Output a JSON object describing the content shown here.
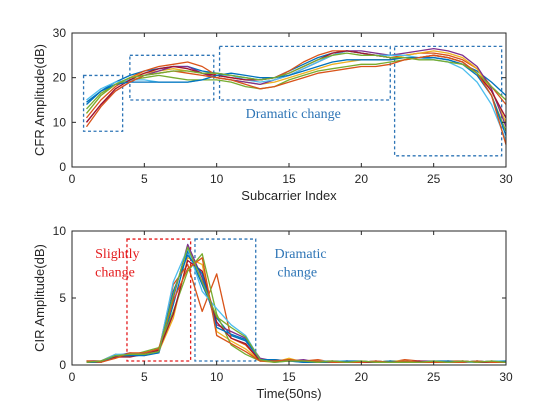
{
  "chart_data": [
    {
      "type": "line",
      "xlabel": "Subcarrier Index",
      "ylabel": "CFR Amplitude(dB)",
      "xlim": [
        0,
        30
      ],
      "ylim": [
        0,
        30
      ],
      "xticks": [
        0,
        5,
        10,
        15,
        20,
        25,
        30
      ],
      "yticks": [
        0,
        10,
        20,
        30
      ],
      "grid": false,
      "series_colors": [
        "#0072BD",
        "#D95319",
        "#EDB120",
        "#7E2F8E",
        "#77AC30",
        "#4DBEEE",
        "#A2142F",
        "#0072BD",
        "#D95319",
        "#77AC30"
      ],
      "x": [
        1,
        2,
        3,
        4,
        5,
        6,
        7,
        8,
        9,
        10,
        11,
        12,
        13,
        14,
        15,
        16,
        17,
        18,
        19,
        20,
        21,
        22,
        23,
        24,
        25,
        26,
        27,
        28,
        29,
        30
      ],
      "series": [
        {
          "values": [
            14,
            17,
            19,
            20.5,
            21.5,
            22,
            22.5,
            22.5,
            21.5,
            21,
            20.5,
            20,
            19.5,
            20,
            21.5,
            23,
            24.5,
            25.5,
            26,
            25.5,
            25,
            24.5,
            24.5,
            24.5,
            24.5,
            24,
            23,
            21.5,
            19,
            16
          ]
        },
        {
          "values": [
            11,
            15,
            18,
            20,
            21.5,
            22.5,
            23,
            23.5,
            22.5,
            20.5,
            20,
            19.5,
            19.5,
            20,
            21.5,
            23.5,
            25,
            26,
            26,
            25.5,
            25,
            24.5,
            25,
            25.5,
            25.5,
            25,
            24,
            22,
            18,
            14
          ]
        },
        {
          "values": [
            12,
            16,
            18.5,
            20,
            21,
            21.5,
            22,
            21.5,
            21,
            20,
            19.5,
            19,
            18.5,
            19,
            20,
            21,
            22,
            23,
            23.5,
            24,
            24,
            24,
            25,
            25.5,
            26,
            25.5,
            24.5,
            22,
            17,
            10
          ]
        },
        {
          "values": [
            10,
            14,
            17,
            19,
            20.5,
            21.5,
            22.5,
            22.5,
            21,
            20,
            19.5,
            19,
            18.5,
            19.5,
            20.5,
            22,
            23.5,
            25,
            26,
            26,
            25.5,
            25,
            25.5,
            26,
            26.5,
            26,
            25,
            22.5,
            17.5,
            9
          ]
        },
        {
          "values": [
            13,
            16.5,
            18.5,
            19.5,
            20,
            20.5,
            20,
            19.5,
            19.5,
            19.5,
            19,
            18,
            17.5,
            18,
            19.5,
            20.5,
            21.5,
            22,
            22.5,
            23,
            23,
            23.5,
            24,
            24.5,
            25,
            24.5,
            23.5,
            21,
            16,
            8
          ]
        },
        {
          "values": [
            15,
            17.5,
            19,
            19.5,
            19.5,
            19,
            19,
            19,
            19.5,
            20.5,
            20.5,
            19.5,
            19,
            19.5,
            20.5,
            22,
            23.5,
            25,
            26,
            25.5,
            25,
            25,
            25,
            24.5,
            24,
            23.5,
            22,
            19,
            14,
            6
          ]
        },
        {
          "values": [
            10,
            14,
            17.5,
            19.5,
            21,
            22,
            22.5,
            22,
            21,
            20.5,
            20,
            19.5,
            19.5,
            20,
            21,
            22.5,
            24,
            25.5,
            26,
            25.5,
            25,
            24.5,
            24.5,
            24.5,
            25,
            24.5,
            23.5,
            21,
            17,
            11
          ]
        },
        {
          "values": [
            14.5,
            17,
            18.5,
            19,
            19,
            19,
            19,
            19,
            19.5,
            20.5,
            21,
            20.5,
            20,
            20,
            20.5,
            21.5,
            22.5,
            23.5,
            24,
            24,
            24,
            24,
            24.5,
            24.5,
            24.5,
            24,
            23,
            20.5,
            16,
            7
          ]
        },
        {
          "values": [
            9,
            13.5,
            17,
            19,
            20.5,
            21,
            21.5,
            21,
            20.5,
            20,
            19.5,
            18.5,
            17.5,
            18,
            19,
            20,
            21,
            21.5,
            22,
            22.5,
            22.5,
            23,
            24,
            24.5,
            25,
            24.5,
            23.5,
            21,
            16,
            5
          ]
        },
        {
          "values": [
            12,
            16,
            18.5,
            20,
            20.5,
            21,
            21.5,
            21.5,
            21,
            21,
            20.5,
            20,
            19.5,
            20,
            21,
            22.5,
            24,
            25,
            25.5,
            25,
            25,
            24.5,
            24.5,
            24,
            24,
            23.5,
            23,
            21,
            18,
            15
          ]
        }
      ],
      "annotations": [
        {
          "text": "Dramatic change",
          "x": 12,
          "y": 11,
          "color": "#2e75b6"
        }
      ],
      "boxes": [
        {
          "x0": 0.8,
          "x1": 3.5,
          "y0": 8,
          "y1": 20.5,
          "color": "#2e75b6"
        },
        {
          "x0": 4,
          "x1": 9.8,
          "y0": 15,
          "y1": 25,
          "color": "#2e75b6"
        },
        {
          "x0": 10.2,
          "x1": 22,
          "y0": 15,
          "y1": 27,
          "color": "#2e75b6"
        },
        {
          "x0": 22.3,
          "x1": 29.7,
          "y0": 2.5,
          "y1": 27,
          "color": "#2e75b6"
        }
      ]
    },
    {
      "type": "line",
      "xlabel": "Time(50ns)",
      "ylabel": "CIR Amplitude(dB)",
      "xlim": [
        0,
        30
      ],
      "ylim": [
        0,
        10
      ],
      "xticks": [
        0,
        5,
        10,
        15,
        20,
        25,
        30
      ],
      "yticks": [
        0,
        5,
        10
      ],
      "grid": false,
      "series_colors": [
        "#0072BD",
        "#D95319",
        "#EDB120",
        "#7E2F8E",
        "#77AC30",
        "#4DBEEE",
        "#A2142F",
        "#0072BD",
        "#D95319",
        "#77AC30"
      ],
      "x": [
        1,
        2,
        3,
        4,
        5,
        6,
        7,
        8,
        9,
        10,
        11,
        12,
        13,
        14,
        15,
        16,
        17,
        18,
        19,
        20,
        21,
        22,
        23,
        24,
        25,
        26,
        27,
        28,
        29,
        30
      ],
      "series": [
        {
          "values": [
            0.3,
            0.2,
            0.6,
            0.7,
            0.8,
            0.9,
            4.5,
            8.5,
            6,
            3.5,
            2.2,
            1.8,
            0.4,
            0.3,
            0.4,
            0.3,
            0.2,
            0.3,
            0.2,
            0.2,
            0.2,
            0.3,
            0.2,
            0.2,
            0.3,
            0.2,
            0.2,
            0.3,
            0.2,
            0.2
          ]
        },
        {
          "values": [
            0.2,
            0.3,
            0.8,
            0.6,
            0.9,
            1.1,
            6,
            7.5,
            4,
            6.8,
            2,
            1.5,
            0.3,
            0.4,
            0.3,
            0.3,
            0.4,
            0.2,
            0.3,
            0.2,
            0.3,
            0.2,
            0.4,
            0.3,
            0.2,
            0.3,
            0.3,
            0.2,
            0.3,
            0.2
          ]
        },
        {
          "values": [
            0.3,
            0.3,
            0.5,
            0.8,
            0.7,
            1,
            3.5,
            8,
            7.5,
            2.5,
            1.8,
            1.2,
            0.3,
            0.2,
            0.5,
            0.2,
            0.3,
            0.3,
            0.2,
            0.3,
            0.2,
            0.3,
            0.3,
            0.2,
            0.2,
            0.3,
            0.2,
            0.2,
            0.2,
            0.3
          ]
        },
        {
          "values": [
            0.2,
            0.2,
            0.7,
            0.9,
            0.8,
            1.2,
            5,
            9,
            6.5,
            3,
            2.5,
            2,
            0.5,
            0.3,
            0.3,
            0.4,
            0.2,
            0.2,
            0.3,
            0.2,
            0.3,
            0.2,
            0.2,
            0.3,
            0.3,
            0.2,
            0.3,
            0.2,
            0.3,
            0.2
          ]
        },
        {
          "values": [
            0.3,
            0.2,
            0.6,
            0.7,
            1,
            1.3,
            4,
            7,
            8.3,
            3.8,
            1.5,
            0.8,
            0.3,
            0.3,
            0.4,
            0.3,
            0.3,
            0.2,
            0.2,
            0.3,
            0.2,
            0.3,
            0.2,
            0.2,
            0.2,
            0.3,
            0.2,
            0.3,
            0.2,
            0.2
          ]
        },
        {
          "values": [
            0.2,
            0.3,
            0.8,
            0.8,
            0.9,
            1,
            6.2,
            8.7,
            5.5,
            4.2,
            3,
            2.2,
            0.4,
            0.2,
            0.3,
            0.2,
            0.3,
            0.3,
            0.3,
            0.2,
            0.3,
            0.2,
            0.3,
            0.2,
            0.3,
            0.2,
            0.2,
            0.2,
            0.3,
            0.3
          ]
        },
        {
          "values": [
            0.3,
            0.3,
            0.6,
            0.6,
            0.8,
            1.1,
            3.8,
            7.8,
            7,
            3.2,
            2,
            1.6,
            0.3,
            0.3,
            0.3,
            0.3,
            0.2,
            0.3,
            0.2,
            0.2,
            0.2,
            0.2,
            0.2,
            0.3,
            0.2,
            0.2,
            0.3,
            0.2,
            0.2,
            0.2
          ]
        },
        {
          "values": [
            0.2,
            0.2,
            0.7,
            0.7,
            0.7,
            0.9,
            5.5,
            8.2,
            6.8,
            2.8,
            2.3,
            1.9,
            0.4,
            0.4,
            0.3,
            0.2,
            0.2,
            0.2,
            0.3,
            0.3,
            0.2,
            0.3,
            0.2,
            0.2,
            0.3,
            0.3,
            0.2,
            0.3,
            0.2,
            0.3
          ]
        },
        {
          "values": [
            0.3,
            0.2,
            0.5,
            0.9,
            0.9,
            1.2,
            4.8,
            7.2,
            8,
            2.2,
            1.6,
            1,
            0.3,
            0.3,
            0.4,
            0.3,
            0.3,
            0.2,
            0.2,
            0.2,
            0.3,
            0.2,
            0.3,
            0.2,
            0.2,
            0.2,
            0.2,
            0.3,
            0.2,
            0.2
          ]
        },
        {
          "values": [
            0.2,
            0.3,
            0.7,
            0.8,
            0.8,
            1,
            5.2,
            8.8,
            6.2,
            3.6,
            2.8,
            2.1,
            0.4,
            0.2,
            0.3,
            0.3,
            0.2,
            0.3,
            0.2,
            0.3,
            0.2,
            0.2,
            0.2,
            0.2,
            0.3,
            0.2,
            0.3,
            0.2,
            0.3,
            0.2
          ]
        }
      ],
      "annotations": [
        {
          "text": "Slightly",
          "x": 1.6,
          "y": 8,
          "color": "#e41a1c"
        },
        {
          "text": "change",
          "x": 1.6,
          "y": 6.6,
          "color": "#e41a1c"
        },
        {
          "text": "Dramatic",
          "x": 14,
          "y": 8,
          "color": "#2e75b6"
        },
        {
          "text": "change",
          "x": 14.2,
          "y": 6.6,
          "color": "#2e75b6"
        }
      ],
      "boxes": [
        {
          "x0": 3.8,
          "x1": 8.2,
          "y0": 0.3,
          "y1": 9.4,
          "color": "#e41a1c"
        },
        {
          "x0": 8.5,
          "x1": 12.7,
          "y0": 0.3,
          "y1": 9.4,
          "color": "#2e75b6"
        }
      ]
    }
  ]
}
